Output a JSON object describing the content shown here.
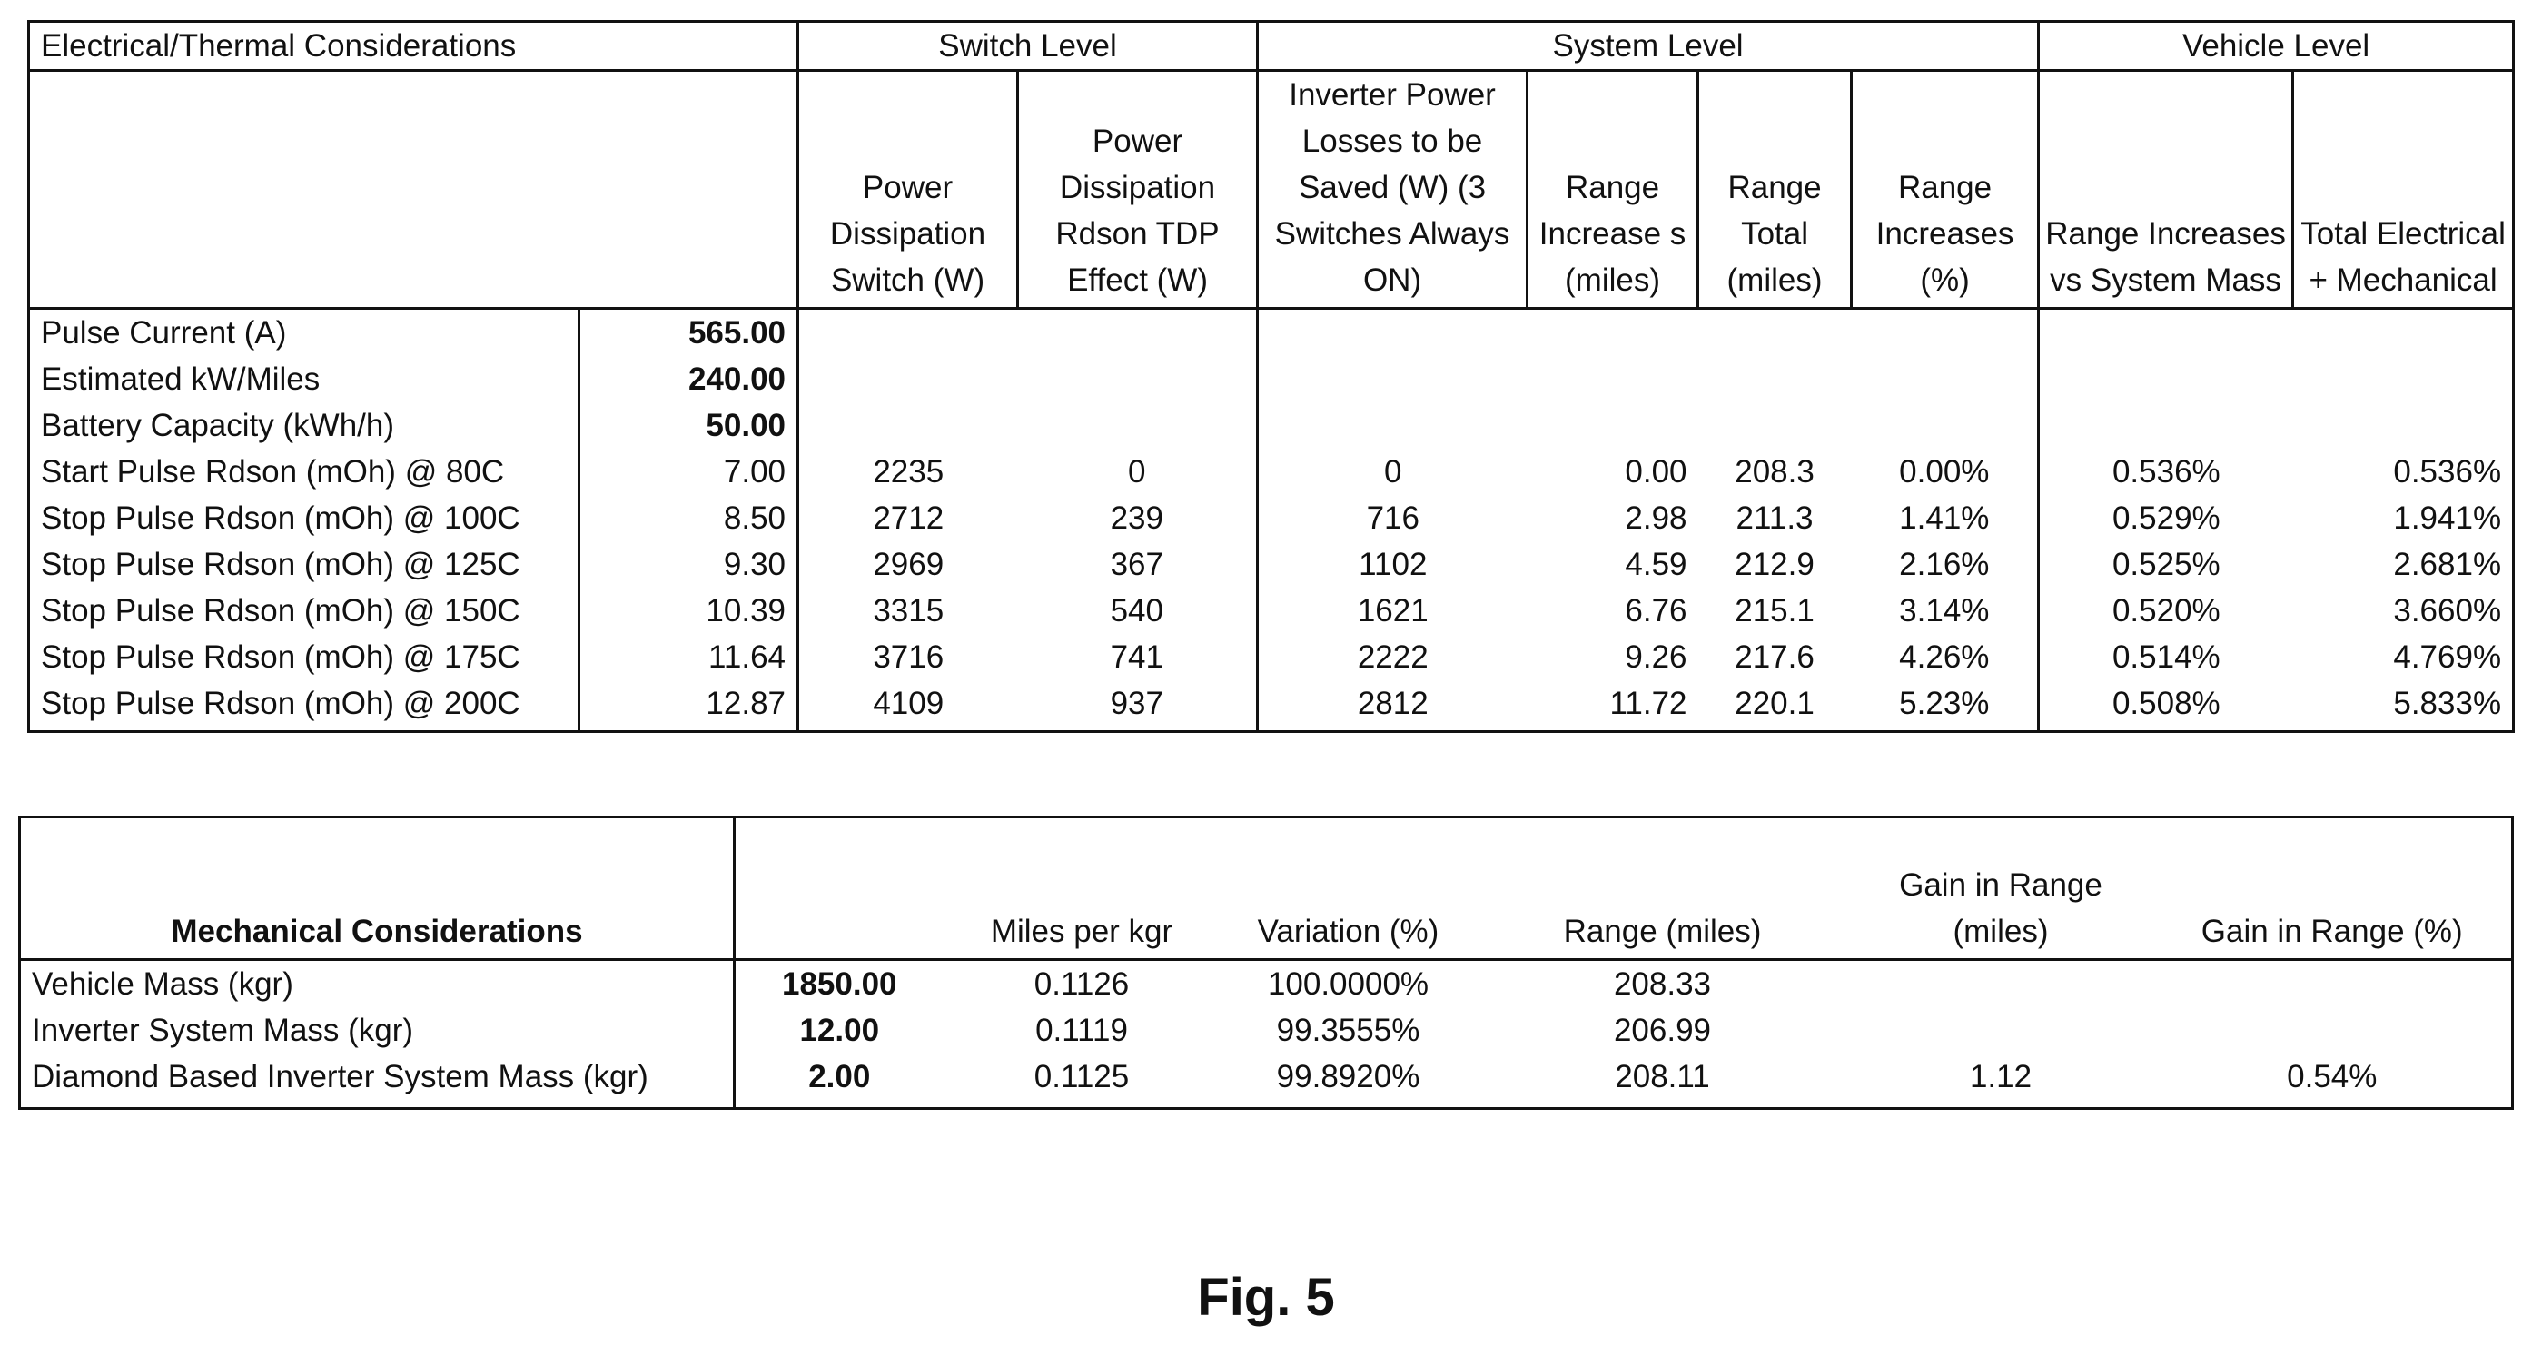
{
  "table1": {
    "caption": "Electrical/Thermal Considerations",
    "groups": {
      "switch": "Switch Level",
      "system": "System Level",
      "vehicle": "Vehicle Level"
    },
    "headers": {
      "pd_switch": "Power Dissipation Switch (W)",
      "pd_rdson": "Power Dissipation Rdson TDP Effect (W)",
      "inverter_losses": "Inverter Power Losses to be Saved (W) (3 Switches Always ON)",
      "range_increase": "Range Increase s (miles)",
      "range_total": "Range Total (miles)",
      "range_increases_pct": "Range Increases (%)",
      "range_vs_mass": "Range Increases vs System Mass",
      "total_elec_mech": "Total Electrical + Mechanical"
    },
    "params": [
      {
        "label": "Pulse Current (A)",
        "value": "565.00"
      },
      {
        "label": "Estimated kW/Miles",
        "value": "240.00"
      },
      {
        "label": "Battery Capacity (kWh/h)",
        "value": "50.00"
      }
    ],
    "rows": [
      {
        "label": "Start Pulse Rdson (mOh) @ 80C",
        "value": "7.00",
        "pd_switch": "2235",
        "pd_rdson": "0",
        "inverter_losses": "0",
        "range_increase": "0.00",
        "range_total": "208.3",
        "range_pct": "0.00%",
        "range_vs_mass": "0.536%",
        "total": "0.536%"
      },
      {
        "label": "Stop Pulse Rdson (mOh) @ 100C",
        "value": "8.50",
        "pd_switch": "2712",
        "pd_rdson": "239",
        "inverter_losses": "716",
        "range_increase": "2.98",
        "range_total": "211.3",
        "range_pct": "1.41%",
        "range_vs_mass": "0.529%",
        "total": "1.941%"
      },
      {
        "label": "Stop Pulse Rdson (mOh) @ 125C",
        "value": "9.30",
        "pd_switch": "2969",
        "pd_rdson": "367",
        "inverter_losses": "1102",
        "range_increase": "4.59",
        "range_total": "212.9",
        "range_pct": "2.16%",
        "range_vs_mass": "0.525%",
        "total": "2.681%"
      },
      {
        "label": "Stop Pulse Rdson (mOh) @ 150C",
        "value": "10.39",
        "pd_switch": "3315",
        "pd_rdson": "540",
        "inverter_losses": "1621",
        "range_increase": "6.76",
        "range_total": "215.1",
        "range_pct": "3.14%",
        "range_vs_mass": "0.520%",
        "total": "3.660%"
      },
      {
        "label": "Stop Pulse Rdson (mOh) @ 175C",
        "value": "11.64",
        "pd_switch": "3716",
        "pd_rdson": "741",
        "inverter_losses": "2222",
        "range_increase": "9.26",
        "range_total": "217.6",
        "range_pct": "4.26%",
        "range_vs_mass": "0.514%",
        "total": "4.769%"
      },
      {
        "label": "Stop Pulse Rdson (mOh) @ 200C",
        "value": "12.87",
        "pd_switch": "4109",
        "pd_rdson": "937",
        "inverter_losses": "2812",
        "range_increase": "11.72",
        "range_total": "220.1",
        "range_pct": "5.23%",
        "range_vs_mass": "0.508%",
        "total": "5.833%"
      }
    ]
  },
  "table2": {
    "title": "Mechanical Considerations",
    "headers": {
      "miles_per_kgr": "Miles per kgr",
      "variation": "Variation (%)",
      "range": "Range (miles)",
      "gain_miles": "Gain in Range (miles)",
      "gain_pct": "Gain in Range (%)"
    },
    "rows": [
      {
        "label": "Vehicle Mass (kgr)",
        "value": "1850.00",
        "miles_per_kgr": "0.1126",
        "variation": "100.0000%",
        "range": "208.33",
        "gain_miles": "",
        "gain_pct": ""
      },
      {
        "label": "Inverter System Mass (kgr)",
        "value": "12.00",
        "miles_per_kgr": "0.1119",
        "variation": "99.3555%",
        "range": "206.99",
        "gain_miles": "",
        "gain_pct": ""
      },
      {
        "label": "Diamond Based Inverter System Mass (kgr)",
        "value": "2.00",
        "miles_per_kgr": "0.1125",
        "variation": "99.8920%",
        "range": "208.11",
        "gain_miles": "1.12",
        "gain_pct": "0.54%"
      }
    ]
  },
  "figure_label": "Fig. 5"
}
